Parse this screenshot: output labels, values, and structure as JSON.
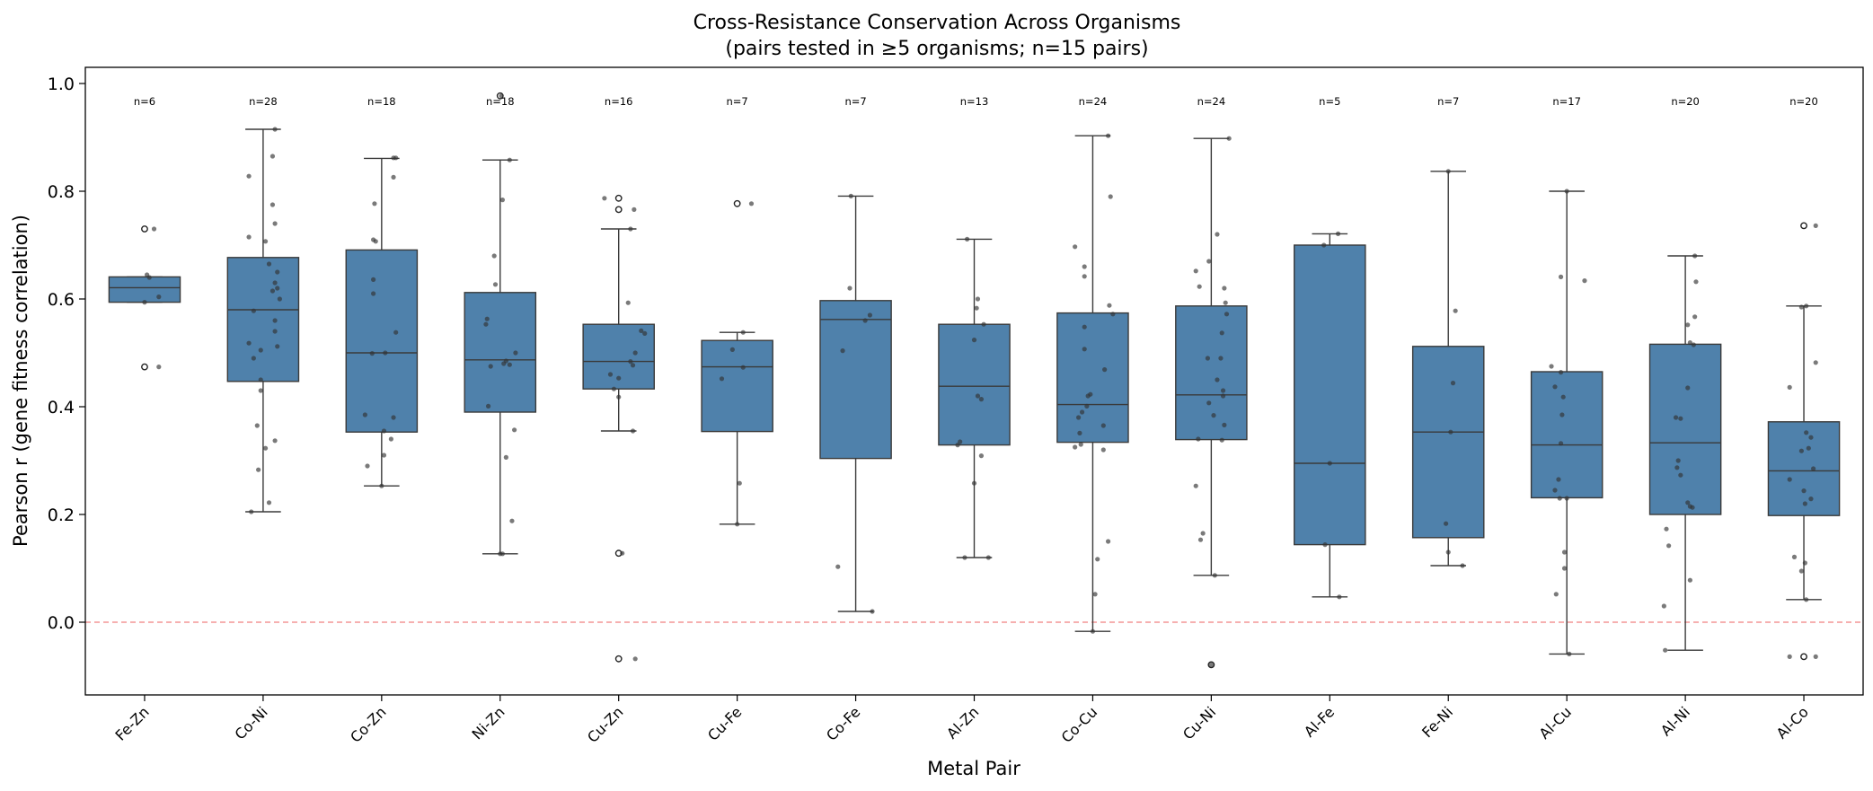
{
  "chart_data": {
    "type": "box",
    "title": "Cross-Resistance Conservation Across Organisms",
    "subtitle": "(pairs tested in ≥5 organisms; n=15 pairs)",
    "xlabel": "Metal Pair",
    "ylabel": "Pearson r (gene fitness correlation)",
    "ylim": [
      -0.135,
      1.03
    ],
    "yticks": [
      0.0,
      0.2,
      0.4,
      0.6,
      0.8,
      1.0
    ],
    "ytick_labels": [
      "0.0",
      "0.2",
      "0.4",
      "0.6",
      "0.8",
      "1.0"
    ],
    "reference_line": {
      "y": 0.0,
      "style": "dashed",
      "color": "#f08080"
    },
    "grid": false,
    "box_color": "#4f81ab",
    "point_color": "#333333",
    "categories": [
      "Fe-Zn",
      "Co-Ni",
      "Co-Zn",
      "Ni-Zn",
      "Cu-Zn",
      "Cu-Fe",
      "Co-Fe",
      "Al-Zn",
      "Co-Cu",
      "Cu-Ni",
      "Al-Fe",
      "Fe-Ni",
      "Al-Cu",
      "Al-Ni",
      "Al-Co"
    ],
    "count_labels": [
      "n=6",
      "n=28",
      "n=18",
      "n=18",
      "n=16",
      "n=7",
      "n=7",
      "n=13",
      "n=24",
      "n=24",
      "n=5",
      "n=7",
      "n=17",
      "n=20",
      "n=20"
    ],
    "boxes": [
      {
        "q1": 0.594,
        "median": 0.621,
        "q3": 0.641,
        "whisker_low": 0.594,
        "whisker_high": 0.641,
        "outliers": [
          0.73,
          0.474
        ]
      },
      {
        "q1": 0.447,
        "median": 0.58,
        "q3": 0.677,
        "whisker_low": 0.205,
        "whisker_high": 0.915,
        "outliers": []
      },
      {
        "q1": 0.353,
        "median": 0.5,
        "q3": 0.691,
        "whisker_low": 0.253,
        "whisker_high": 0.861,
        "outliers": []
      },
      {
        "q1": 0.39,
        "median": 0.487,
        "q3": 0.612,
        "whisker_low": 0.127,
        "whisker_high": 0.858,
        "outliers": [
          0.977
        ]
      },
      {
        "q1": 0.433,
        "median": 0.484,
        "q3": 0.553,
        "whisker_low": 0.355,
        "whisker_high": 0.73,
        "outliers": [
          0.787,
          0.766,
          0.128,
          -0.068
        ]
      },
      {
        "q1": 0.354,
        "median": 0.474,
        "q3": 0.523,
        "whisker_low": 0.182,
        "whisker_high": 0.538,
        "outliers": [
          0.777
        ]
      },
      {
        "q1": 0.304,
        "median": 0.562,
        "q3": 0.597,
        "whisker_low": 0.02,
        "whisker_high": 0.791,
        "outliers": []
      },
      {
        "q1": 0.329,
        "median": 0.438,
        "q3": 0.553,
        "whisker_low": 0.12,
        "whisker_high": 0.711,
        "outliers": []
      },
      {
        "q1": 0.334,
        "median": 0.404,
        "q3": 0.574,
        "whisker_low": -0.017,
        "whisker_high": 0.903,
        "outliers": []
      },
      {
        "q1": 0.339,
        "median": 0.422,
        "q3": 0.587,
        "whisker_low": 0.087,
        "whisker_high": 0.898,
        "outliers": [
          -0.079
        ]
      },
      {
        "q1": 0.144,
        "median": 0.295,
        "q3": 0.7,
        "whisker_low": 0.047,
        "whisker_high": 0.721,
        "outliers": []
      },
      {
        "q1": 0.157,
        "median": 0.353,
        "q3": 0.512,
        "whisker_low": 0.105,
        "whisker_high": 0.837,
        "outliers": []
      },
      {
        "q1": 0.231,
        "median": 0.329,
        "q3": 0.465,
        "whisker_low": -0.059,
        "whisker_high": 0.8,
        "outliers": []
      },
      {
        "q1": 0.2,
        "median": 0.333,
        "q3": 0.516,
        "whisker_low": -0.052,
        "whisker_high": 0.68,
        "outliers": []
      },
      {
        "q1": 0.198,
        "median": 0.281,
        "q3": 0.372,
        "whisker_low": 0.042,
        "whisker_high": 0.587,
        "outliers": [
          0.736,
          -0.064
        ]
      }
    ],
    "points": [
      [
        [
          0.73,
          0.08
        ],
        [
          0.64,
          0.04
        ],
        [
          0.645,
          0.02
        ],
        [
          0.604,
          0.12
        ],
        [
          0.594,
          0.0
        ],
        [
          0.474,
          0.12
        ]
      ],
      [
        [
          0.915,
          0.1
        ],
        [
          0.865,
          0.08
        ],
        [
          0.828,
          -0.12
        ],
        [
          0.775,
          0.08
        ],
        [
          0.74,
          0.1
        ],
        [
          0.715,
          -0.12
        ],
        [
          0.707,
          0.02
        ],
        [
          0.665,
          0.05
        ],
        [
          0.65,
          0.12
        ],
        [
          0.63,
          0.1
        ],
        [
          0.62,
          0.12
        ],
        [
          0.615,
          0.08
        ],
        [
          0.6,
          0.14
        ],
        [
          0.578,
          -0.08
        ],
        [
          0.56,
          0.1
        ],
        [
          0.54,
          0.1
        ],
        [
          0.518,
          -0.12
        ],
        [
          0.512,
          0.12
        ],
        [
          0.505,
          -0.02
        ],
        [
          0.49,
          -0.08
        ],
        [
          0.45,
          -0.02
        ],
        [
          0.43,
          -0.02
        ],
        [
          0.365,
          -0.05
        ],
        [
          0.337,
          0.1
        ],
        [
          0.323,
          0.02
        ],
        [
          0.283,
          -0.04
        ],
        [
          0.222,
          0.05
        ],
        [
          0.205,
          -0.1
        ]
      ],
      [
        [
          0.862,
          0.12
        ],
        [
          0.862,
          0.1
        ],
        [
          0.826,
          0.1
        ],
        [
          0.777,
          -0.06
        ],
        [
          0.71,
          -0.07
        ],
        [
          0.707,
          -0.05
        ],
        [
          0.636,
          -0.07
        ],
        [
          0.61,
          -0.07
        ],
        [
          0.538,
          0.12
        ],
        [
          0.5,
          0.03
        ],
        [
          0.499,
          -0.08
        ],
        [
          0.385,
          -0.14
        ],
        [
          0.38,
          0.1
        ],
        [
          0.355,
          0.02
        ],
        [
          0.34,
          0.08
        ],
        [
          0.31,
          0.02
        ],
        [
          0.29,
          -0.12
        ],
        [
          0.253,
          0.0
        ]
      ],
      [
        [
          0.977,
          0.01
        ],
        [
          0.858,
          0.08
        ],
        [
          0.784,
          0.02
        ],
        [
          0.68,
          -0.05
        ],
        [
          0.627,
          -0.04
        ],
        [
          0.563,
          -0.11
        ],
        [
          0.553,
          -0.12
        ],
        [
          0.5,
          0.13
        ],
        [
          0.485,
          0.05
        ],
        [
          0.48,
          0.03
        ],
        [
          0.478,
          0.08
        ],
        [
          0.475,
          -0.08
        ],
        [
          0.401,
          -0.1
        ],
        [
          0.357,
          0.12
        ],
        [
          0.306,
          0.05
        ],
        [
          0.188,
          0.1
        ],
        [
          0.127,
          0.0
        ],
        [
          0.127,
          0.02
        ]
      ],
      [
        [
          0.787,
          -0.12
        ],
        [
          0.766,
          0.13
        ],
        [
          0.541,
          0.19
        ],
        [
          0.536,
          0.22
        ],
        [
          0.5,
          0.14
        ],
        [
          0.484,
          0.1
        ],
        [
          0.477,
          0.12
        ],
        [
          0.46,
          -0.07
        ],
        [
          0.453,
          0.0
        ],
        [
          0.433,
          -0.04
        ],
        [
          0.418,
          0.0
        ],
        [
          0.355,
          0.12
        ],
        [
          0.128,
          0.03
        ],
        [
          -0.068,
          0.14
        ],
        [
          0.593,
          0.08
        ],
        [
          0.73,
          0.1
        ]
      ],
      [
        [
          0.777,
          0.12
        ],
        [
          0.538,
          0.05
        ],
        [
          0.506,
          -0.04
        ],
        [
          0.473,
          0.05
        ],
        [
          0.452,
          -0.13
        ],
        [
          0.258,
          0.02
        ],
        [
          0.182,
          0.0
        ]
      ],
      [
        [
          0.791,
          -0.04
        ],
        [
          0.62,
          -0.05
        ],
        [
          0.57,
          0.12
        ],
        [
          0.56,
          0.08
        ],
        [
          0.504,
          -0.11
        ],
        [
          0.103,
          -0.15
        ],
        [
          0.02,
          0.14
        ]
      ],
      [
        [
          0.711,
          -0.06
        ],
        [
          0.6,
          0.03
        ],
        [
          0.583,
          0.02
        ],
        [
          0.553,
          0.08
        ],
        [
          0.524,
          0.0
        ],
        [
          0.42,
          0.03
        ],
        [
          0.414,
          0.06
        ],
        [
          0.335,
          -0.12
        ],
        [
          0.329,
          -0.14
        ],
        [
          0.309,
          0.06
        ],
        [
          0.258,
          0.0
        ],
        [
          0.12,
          -0.08
        ],
        [
          0.12,
          0.12
        ]
      ],
      [
        [
          0.903,
          0.13
        ],
        [
          0.79,
          0.15
        ],
        [
          0.697,
          -0.15
        ],
        [
          0.66,
          -0.07
        ],
        [
          0.642,
          -0.07
        ],
        [
          0.588,
          0.14
        ],
        [
          0.572,
          0.17
        ],
        [
          0.548,
          -0.07
        ],
        [
          0.507,
          -0.07
        ],
        [
          0.469,
          0.1
        ],
        [
          0.423,
          -0.02
        ],
        [
          0.42,
          -0.04
        ],
        [
          0.401,
          -0.05
        ],
        [
          0.39,
          -0.09
        ],
        [
          0.38,
          -0.12
        ],
        [
          0.365,
          0.09
        ],
        [
          0.351,
          -0.11
        ],
        [
          0.33,
          -0.1
        ],
        [
          0.325,
          -0.15
        ],
        [
          0.32,
          0.09
        ],
        [
          0.15,
          0.13
        ],
        [
          0.117,
          0.04
        ],
        [
          0.052,
          0.02
        ],
        [
          -0.017,
          0.0
        ]
      ],
      [
        [
          0.898,
          0.15
        ],
        [
          0.72,
          0.05
        ],
        [
          0.67,
          -0.02
        ],
        [
          0.652,
          -0.13
        ],
        [
          0.623,
          -0.1
        ],
        [
          0.62,
          0.11
        ],
        [
          0.593,
          0.12
        ],
        [
          0.572,
          0.13
        ],
        [
          0.537,
          0.09
        ],
        [
          0.49,
          -0.03
        ],
        [
          0.45,
          0.05
        ],
        [
          0.43,
          0.1
        ],
        [
          0.42,
          0.1
        ],
        [
          0.407,
          -0.02
        ],
        [
          0.384,
          0.02
        ],
        [
          0.366,
          0.11
        ],
        [
          0.34,
          -0.11
        ],
        [
          0.338,
          0.09
        ],
        [
          0.253,
          -0.13
        ],
        [
          0.165,
          -0.07
        ],
        [
          0.153,
          -0.09
        ],
        [
          0.087,
          0.03
        ],
        [
          -0.079,
          0.0
        ],
        [
          0.49,
          0.08
        ]
      ],
      [
        [
          0.721,
          0.07
        ],
        [
          0.7,
          -0.05
        ],
        [
          0.295,
          0.0
        ],
        [
          0.144,
          -0.04
        ],
        [
          0.047,
          0.08
        ]
      ],
      [
        [
          0.837,
          0.0
        ],
        [
          0.578,
          0.06
        ],
        [
          0.444,
          0.04
        ],
        [
          0.353,
          0.02
        ],
        [
          0.183,
          -0.02
        ],
        [
          0.13,
          0.0
        ],
        [
          0.105,
          0.12
        ]
      ],
      [
        [
          0.8,
          0.0
        ],
        [
          0.641,
          -0.05
        ],
        [
          0.634,
          0.15
        ],
        [
          0.475,
          -0.13
        ],
        [
          0.464,
          -0.05
        ],
        [
          0.437,
          -0.1
        ],
        [
          0.418,
          -0.03
        ],
        [
          0.385,
          -0.04
        ],
        [
          0.332,
          -0.05
        ],
        [
          0.265,
          -0.07
        ],
        [
          0.245,
          -0.1
        ],
        [
          0.23,
          0.0
        ],
        [
          0.13,
          -0.02
        ],
        [
          0.1,
          -0.02
        ],
        [
          0.052,
          -0.09
        ],
        [
          -0.059,
          0.02
        ],
        [
          0.23,
          -0.06
        ]
      ],
      [
        [
          0.68,
          0.08
        ],
        [
          0.632,
          0.09
        ],
        [
          0.567,
          0.08
        ],
        [
          0.552,
          0.02
        ],
        [
          0.519,
          0.04
        ],
        [
          0.515,
          0.07
        ],
        [
          0.435,
          0.02
        ],
        [
          0.38,
          -0.08
        ],
        [
          0.378,
          -0.04
        ],
        [
          0.287,
          -0.07
        ],
        [
          0.273,
          -0.04
        ],
        [
          0.222,
          0.02
        ],
        [
          0.215,
          0.04
        ],
        [
          0.213,
          0.06
        ],
        [
          0.173,
          -0.16
        ],
        [
          0.142,
          -0.14
        ],
        [
          0.078,
          0.04
        ],
        [
          0.03,
          -0.18
        ],
        [
          -0.052,
          -0.17
        ],
        [
          0.3,
          -0.06
        ]
      ],
      [
        [
          0.736,
          0.1
        ],
        [
          0.585,
          -0.02
        ],
        [
          0.587,
          0.02
        ],
        [
          0.482,
          0.1
        ],
        [
          0.436,
          -0.12
        ],
        [
          0.352,
          0.02
        ],
        [
          0.343,
          0.06
        ],
        [
          0.323,
          0.04
        ],
        [
          0.318,
          -0.02
        ],
        [
          0.285,
          0.08
        ],
        [
          0.265,
          -0.12
        ],
        [
          0.244,
          0.0
        ],
        [
          0.229,
          0.06
        ],
        [
          0.22,
          0.01
        ],
        [
          0.121,
          -0.08
        ],
        [
          0.11,
          0.01
        ],
        [
          0.095,
          -0.02
        ],
        [
          0.042,
          0.02
        ],
        [
          -0.064,
          0.1
        ],
        [
          -0.064,
          -0.12
        ]
      ]
    ]
  }
}
